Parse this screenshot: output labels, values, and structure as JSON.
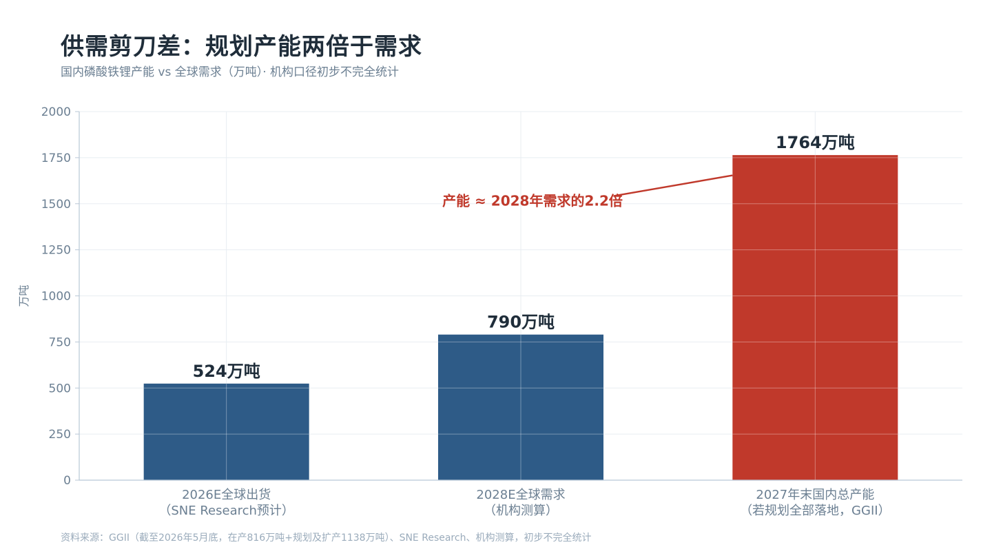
{
  "header": {
    "title": "供需剪刀差：规划产能两倍于需求",
    "subtitle": "国内磷酸铁锂产能 vs 全球需求（万吨）· 机构口径初步不完全统计"
  },
  "footnote": "资料来源：GGII（截至2026年5月底，在产816万吨+规划及扩产1138万吨）、SNE Research、机构测算，初步不完全统计",
  "colors": {
    "blue": "#2e5b87",
    "red": "#c0392b",
    "dark_text": "#1f2d3a",
    "axis_text": "#6b7f92",
    "grid": "#e8edf2"
  },
  "chart_data": {
    "type": "bar",
    "title": "供需剪刀差：规划产能两倍于需求",
    "ylabel": "万吨",
    "ylim": [
      0,
      2000
    ],
    "yticks": [
      0,
      250,
      500,
      750,
      1000,
      1250,
      1500,
      1750,
      2000
    ],
    "grid": true,
    "categories": [
      [
        "2026E全球出货",
        "（SNE Research预计）"
      ],
      [
        "2028E全球需求",
        "（机构测算）"
      ],
      [
        "2027年末国内总产能",
        "（若规划全部落地，GGII）"
      ]
    ],
    "values": [
      524,
      790,
      1764
    ],
    "value_labels": [
      "524万吨",
      "790万吨",
      "1764万吨"
    ],
    "bar_colors": [
      "#2e5b87",
      "#2e5b87",
      "#c0392b"
    ],
    "annotation": {
      "text": "产能 ≈ 2028年需求的2.2倍",
      "target_category_index": 2,
      "color": "#c0392b"
    }
  }
}
